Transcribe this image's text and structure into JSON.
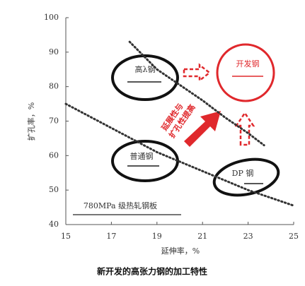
{
  "chart_data": {
    "type": "line",
    "caption": "新开发的高张力钢的加工特性",
    "x_label": "延伸率，%",
    "y_label": "扩孔率，%",
    "xlim": [
      15,
      25
    ],
    "xticks": [
      15,
      17,
      19,
      21,
      23,
      25
    ],
    "ylim": [
      40,
      100
    ],
    "yticks": [
      40,
      50,
      60,
      70,
      80,
      90,
      100
    ],
    "series": [
      {
        "color": "#333333",
        "x": [
          15,
          17,
          19,
          21,
          23,
          25
        ],
        "values": [
          75,
          68,
          61,
          55.5,
          50,
          45.5
        ]
      },
      {
        "color": "#333333",
        "x": [
          17.8,
          19,
          21,
          22,
          23,
          23.7
        ],
        "values": [
          93,
          85,
          76,
          71,
          66.5,
          63
        ]
      }
    ],
    "annotations": [
      "高λ钢",
      "开发钢",
      "普通钢",
      "DP 钢",
      "780MPa 级热轧钢板",
      "延展性与",
      "扩孔性提高"
    ]
  }
}
